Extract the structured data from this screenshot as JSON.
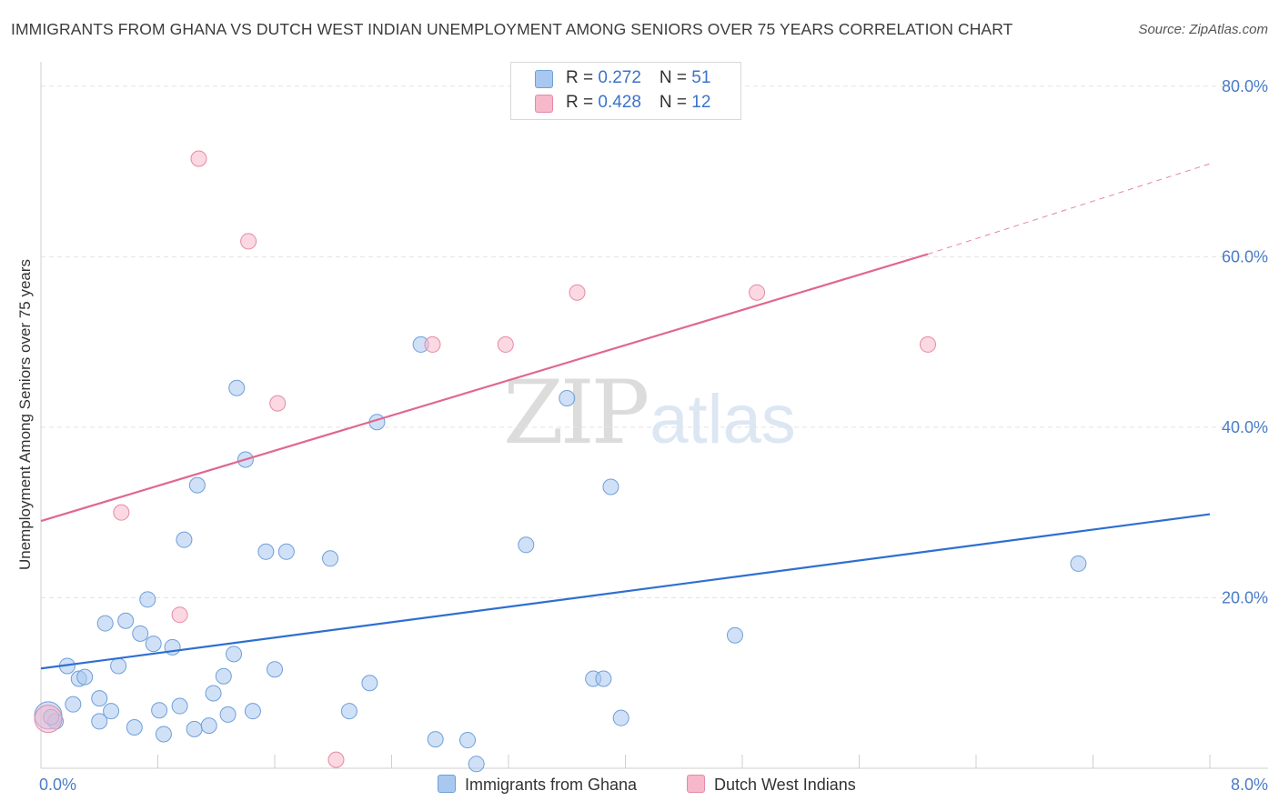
{
  "header": {
    "title": "IMMIGRANTS FROM GHANA VS DUTCH WEST INDIAN UNEMPLOYMENT AMONG SENIORS OVER 75 YEARS CORRELATION CHART",
    "source": "Source: ZipAtlas.com"
  },
  "watermark": {
    "zip": "ZIP",
    "atlas": "atlas"
  },
  "legend": {
    "r_label": "R = ",
    "n_label": "N = ",
    "items": [
      {
        "r": "0.272",
        "n": "51",
        "color": "#a9c8f0"
      },
      {
        "r": "0.428",
        "n": "12",
        "color": "#f7b8cb"
      }
    ]
  },
  "bottom_legend": {
    "series1": "Immigrants from Ghana",
    "series2": "Dutch West Indians"
  },
  "chart_data": {
    "type": "scatter",
    "ylabel": "Unemployment Among Seniors over 75 years",
    "x_tick_labels": [
      "0.0%",
      "8.0%"
    ],
    "y_tick_labels": [
      "20.0%",
      "40.0%",
      "60.0%",
      "80.0%"
    ],
    "xlim": [
      0,
      8
    ],
    "ylim": [
      0,
      82
    ],
    "grid": true,
    "colors": {
      "ghana_fill": "#a9c8f0",
      "ghana_stroke": "#6f9fd8",
      "ghana_line": "#2f6fd0",
      "dwi_fill": "#f7b8cb",
      "dwi_stroke": "#e58aa6",
      "dwi_line": "#e06790",
      "axis_text": "#4a7cc7"
    },
    "series": [
      {
        "name": "Immigrants from Ghana",
        "points": [
          [
            0.05,
            6.2
          ],
          [
            0.1,
            5.5
          ],
          [
            0.18,
            12.0
          ],
          [
            0.22,
            7.5
          ],
          [
            0.26,
            10.5
          ],
          [
            0.3,
            10.7
          ],
          [
            0.4,
            5.5
          ],
          [
            0.4,
            8.2
          ],
          [
            0.44,
            17.0
          ],
          [
            0.48,
            6.7
          ],
          [
            0.53,
            12.0
          ],
          [
            0.58,
            17.3
          ],
          [
            0.64,
            4.8
          ],
          [
            0.68,
            15.8
          ],
          [
            0.73,
            19.8
          ],
          [
            0.77,
            14.6
          ],
          [
            0.81,
            6.8
          ],
          [
            0.84,
            4.0
          ],
          [
            0.9,
            14.2
          ],
          [
            0.95,
            7.3
          ],
          [
            0.98,
            26.8
          ],
          [
            1.05,
            4.6
          ],
          [
            1.07,
            33.2
          ],
          [
            1.15,
            5.0
          ],
          [
            1.18,
            8.8
          ],
          [
            1.25,
            10.8
          ],
          [
            1.28,
            6.3
          ],
          [
            1.32,
            13.4
          ],
          [
            1.34,
            44.6
          ],
          [
            1.4,
            36.2
          ],
          [
            1.45,
            6.7
          ],
          [
            1.54,
            25.4
          ],
          [
            1.6,
            11.6
          ],
          [
            1.68,
            25.4
          ],
          [
            1.98,
            24.6
          ],
          [
            2.11,
            6.7
          ],
          [
            2.25,
            10.0
          ],
          [
            2.3,
            40.6
          ],
          [
            2.6,
            49.7
          ],
          [
            2.7,
            3.4
          ],
          [
            2.92,
            3.3
          ],
          [
            2.98,
            0.5
          ],
          [
            3.32,
            26.2
          ],
          [
            3.6,
            43.4
          ],
          [
            3.78,
            10.5
          ],
          [
            3.85,
            10.5
          ],
          [
            3.9,
            33.0
          ],
          [
            3.97,
            5.9
          ],
          [
            4.75,
            15.6
          ],
          [
            7.1,
            24.0
          ],
          [
            0.07,
            6.0
          ]
        ],
        "trend": {
          "x": [
            0,
            8
          ],
          "y": [
            11.7,
            29.8
          ]
        }
      },
      {
        "name": "Dutch West Indians",
        "points": [
          [
            0.05,
            5.8
          ],
          [
            0.55,
            30.0
          ],
          [
            0.95,
            18.0
          ],
          [
            1.08,
            71.5
          ],
          [
            1.42,
            61.8
          ],
          [
            1.62,
            42.8
          ],
          [
            2.02,
            1.0
          ],
          [
            2.68,
            49.7
          ],
          [
            3.18,
            49.7
          ],
          [
            3.67,
            55.8
          ],
          [
            4.9,
            55.8
          ],
          [
            6.07,
            49.7
          ]
        ],
        "trend": {
          "x": [
            0,
            6.07
          ],
          "y": [
            29.0,
            60.3
          ]
        },
        "trend_extension": {
          "x": [
            6.07,
            8
          ],
          "y": [
            60.3,
            70.9
          ]
        }
      }
    ]
  }
}
